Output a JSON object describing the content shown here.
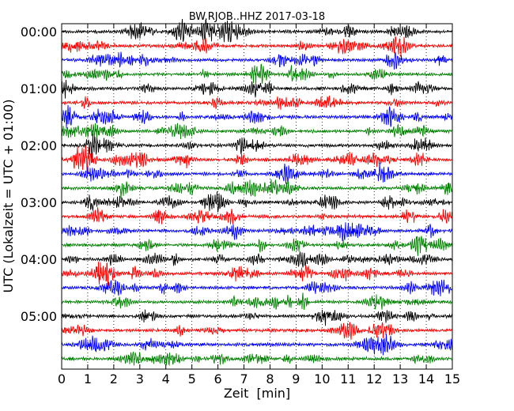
{
  "chart_data": {
    "type": "line",
    "title": "BW.RJOB..HHZ 2017-03-18",
    "xlabel": "Zeit  [min]",
    "ylabel": "UTC (Lokalzeit = UTC + 01:00)",
    "xlim": [
      0,
      15
    ],
    "x_ticks": [
      "0",
      "1",
      "2",
      "3",
      "4",
      "5",
      "6",
      "7",
      "8",
      "9",
      "10",
      "11",
      "12",
      "13",
      "14",
      "15"
    ],
    "y_ticks": [
      "00:00",
      "01:00",
      "02:00",
      "03:00",
      "04:00",
      "05:00"
    ],
    "track_count": 24,
    "track_minutes": 15,
    "track_colors": [
      "#000000",
      "#ff0000",
      "#0000ff",
      "#008000"
    ],
    "grid": {
      "vertical_dotted": true
    }
  }
}
